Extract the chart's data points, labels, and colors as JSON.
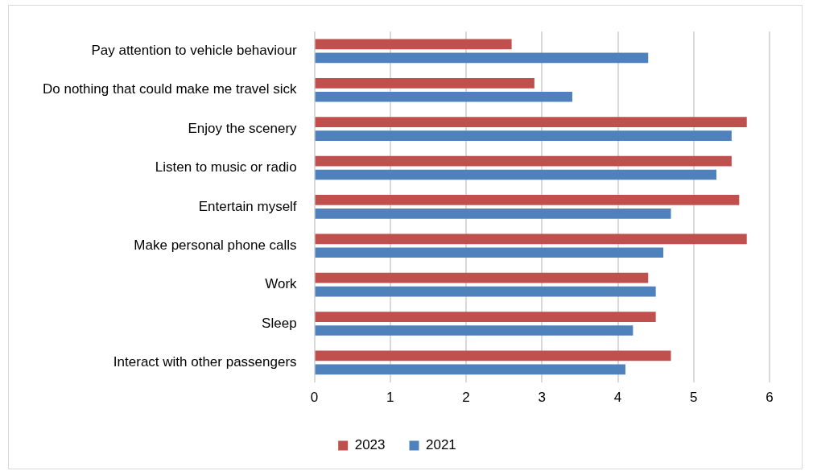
{
  "chart_data": {
    "type": "bar",
    "orientation": "horizontal",
    "categories": [
      "Pay attention to vehicle behaviour",
      "Do nothing that could make me travel sick",
      "Enjoy the scenery",
      "Listen to music or radio",
      "Entertain myself",
      "Make personal phone calls",
      "Work",
      "Sleep",
      "Interact with other passengers"
    ],
    "series": [
      {
        "name": "2023",
        "color": "#c0504d",
        "values": [
          2.6,
          2.9,
          5.7,
          5.5,
          5.6,
          5.7,
          4.4,
          4.5,
          4.7
        ]
      },
      {
        "name": "2021",
        "color": "#4f81bd",
        "values": [
          4.4,
          3.4,
          5.5,
          5.3,
          4.7,
          4.6,
          4.5,
          4.2,
          4.1
        ]
      }
    ],
    "xlim": [
      0,
      6
    ],
    "xticks": [
      0,
      1,
      2,
      3,
      4,
      5,
      6
    ],
    "grid": "x",
    "legend": "bottom"
  }
}
